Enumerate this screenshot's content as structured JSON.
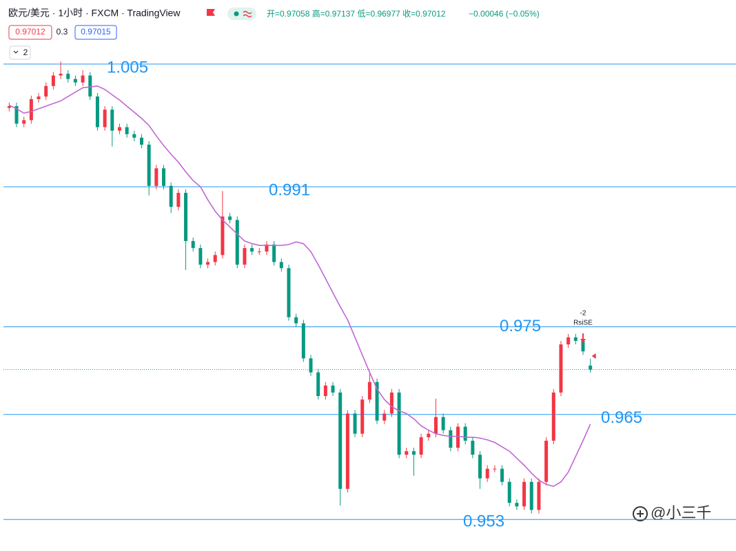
{
  "header": {
    "symbol": "欧元/美元 · 1小时 · FXCM · TradingView",
    "ohlc": "开=0.97058 高=0.97137 低=0.96977 收=0.97012",
    "change": "−0.00046 (−0.05%)",
    "sell": "0.97012",
    "spread": "0.3",
    "buy": "0.97015",
    "indicators": "2"
  },
  "chart_data": {
    "type": "candlestick",
    "open": [
      1.0,
      1.0002,
      0.9982,
      0.9986,
      1.001,
      1.0013,
      1.0025,
      1.0037,
      1.0039,
      1.0033,
      1.0029,
      1.0037,
      1.0013,
      0.9978,
      0.9998,
      0.9974,
      0.9978,
      0.997,
      0.9966,
      0.9958,
      0.9911,
      0.9931,
      0.9911,
      0.9887,
      0.9903,
      0.9848,
      0.984,
      0.9821,
      0.9824,
      0.9832,
      0.9876,
      0.9872,
      0.9821,
      0.984,
      0.9836,
      0.9836,
      0.9844,
      0.9824,
      0.9817,
      0.9761,
      0.9754,
      0.9714,
      0.9698,
      0.9671,
      0.9683,
      0.9675,
      0.9565,
      0.9651,
      0.9628,
      0.9667,
      0.9687,
      0.9643,
      0.9651,
      0.9675,
      0.9604,
      0.9608,
      0.9604,
      0.9624,
      0.9628,
      0.9647,
      0.9632,
      0.9612,
      0.9636,
      0.962,
      0.9604,
      0.9577,
      0.9588,
      0.9588,
      0.9573,
      0.9549,
      0.9545,
      0.9573,
      0.9541,
      0.9573,
      0.962,
      0.9675,
      0.973,
      0.9738,
      0.9734,
      0.97058
    ],
    "high": [
      1.0006,
      1.0006,
      0.999,
      1.0014,
      1.0017,
      1.0029,
      1.0041,
      1.0053,
      1.0043,
      1.0037,
      1.0043,
      1.0041,
      1.0017,
      1.0002,
      1.0002,
      0.9982,
      0.9982,
      0.9974,
      0.997,
      0.9962,
      0.9935,
      0.9935,
      0.9915,
      0.9907,
      0.9907,
      0.9852,
      0.9844,
      0.9828,
      0.9836,
      0.9905,
      0.988,
      0.9876,
      0.9844,
      0.9844,
      0.984,
      0.9848,
      0.9848,
      0.9828,
      0.9821,
      0.9765,
      0.9758,
      0.9718,
      0.9702,
      0.9687,
      0.9687,
      0.9679,
      0.9655,
      0.9655,
      0.9671,
      0.9698,
      0.9691,
      0.9655,
      0.9679,
      0.9679,
      0.9612,
      0.9612,
      0.9628,
      0.9632,
      0.9668,
      0.9651,
      0.9636,
      0.964,
      0.964,
      0.9624,
      0.9608,
      0.9592,
      0.9592,
      0.9592,
      0.9577,
      0.9553,
      0.9577,
      0.9577,
      0.9577,
      0.9624,
      0.9679,
      0.9734,
      0.9742,
      0.9742,
      0.9738,
      0.97137
    ],
    "low": [
      0.9996,
      0.9978,
      0.9978,
      0.9982,
      1.0006,
      1.0009,
      1.0021,
      1.0033,
      1.0029,
      1.0025,
      1.0025,
      1.0009,
      0.9974,
      0.9974,
      0.9956,
      0.997,
      0.9966,
      0.9962,
      0.9954,
      0.99,
      0.9907,
      0.9907,
      0.988,
      0.9883,
      0.9815,
      0.9836,
      0.9817,
      0.9817,
      0.982,
      0.9828,
      0.9868,
      0.9817,
      0.9817,
      0.9832,
      0.9832,
      0.9832,
      0.982,
      0.9813,
      0.9757,
      0.975,
      0.971,
      0.9694,
      0.9667,
      0.9667,
      0.9671,
      0.9546,
      0.9561,
      0.9624,
      0.9624,
      0.9663,
      0.9639,
      0.9639,
      0.9647,
      0.96,
      0.96,
      0.958,
      0.96,
      0.962,
      0.9624,
      0.9628,
      0.9608,
      0.9608,
      0.9616,
      0.96,
      0.9565,
      0.9573,
      0.9584,
      0.9569,
      0.9545,
      0.9541,
      0.9541,
      0.9537,
      0.9537,
      0.9569,
      0.9616,
      0.9671,
      0.9726,
      0.973,
      0.9718,
      0.96977
    ],
    "close": [
      1.0002,
      0.9982,
      0.9986,
      1.001,
      1.0013,
      1.0025,
      1.0037,
      1.0039,
      1.0033,
      1.0029,
      1.0037,
      1.0013,
      0.9978,
      0.9998,
      0.9974,
      0.9978,
      0.997,
      0.9966,
      0.9958,
      0.9911,
      0.9931,
      0.9911,
      0.9887,
      0.9903,
      0.9848,
      0.984,
      0.9821,
      0.9824,
      0.9832,
      0.9876,
      0.9872,
      0.9821,
      0.984,
      0.9836,
      0.9836,
      0.9844,
      0.9824,
      0.9817,
      0.9761,
      0.9754,
      0.9714,
      0.9698,
      0.9671,
      0.9683,
      0.9675,
      0.9565,
      0.9651,
      0.9628,
      0.9667,
      0.9687,
      0.9643,
      0.9651,
      0.9675,
      0.9604,
      0.9608,
      0.9604,
      0.9624,
      0.9628,
      0.9647,
      0.9632,
      0.9612,
      0.9636,
      0.962,
      0.9604,
      0.9577,
      0.9588,
      0.9588,
      0.9573,
      0.9549,
      0.9545,
      0.9573,
      0.9541,
      0.9573,
      0.962,
      0.9675,
      0.973,
      0.9738,
      0.9734,
      0.9722,
      0.97012
    ],
    "up_color": "#f23645",
    "down_color": "#089981",
    "series": [
      {
        "color": "#c165d4",
        "values": [
          1.0003,
          0.9999,
          0.9994,
          0.9996,
          0.9999,
          1.0002,
          1.0005,
          1.0008,
          1.0013,
          1.0018,
          1.0023,
          1.0024,
          1.0025,
          1.0021,
          1.0015,
          1.0009,
          1.0002,
          0.9995,
          0.9988,
          0.998,
          0.9968,
          0.9957,
          0.9947,
          0.9938,
          0.9927,
          0.9917,
          0.991,
          0.9895,
          0.9882,
          0.9872,
          0.9864,
          0.9856,
          0.9848,
          0.9845,
          0.9843,
          0.9843,
          0.9843,
          0.9843,
          0.9844,
          0.9847,
          0.9845,
          0.9836,
          0.9821,
          0.9805,
          0.9789,
          0.9773,
          0.9758,
          0.9738,
          0.9718,
          0.9698,
          0.9679,
          0.9667,
          0.9659,
          0.9654,
          0.9651,
          0.9645,
          0.9637,
          0.9632,
          0.9628,
          0.9626,
          0.9625,
          0.9625,
          0.9624,
          0.9624,
          0.9623,
          0.9621,
          0.9618,
          0.9613,
          0.9608,
          0.96,
          0.9592,
          0.9583,
          0.9575,
          0.957,
          0.9568,
          0.9573,
          0.9584,
          0.9602,
          0.962,
          0.9639
        ]
      }
    ],
    "ylim": [
      0.9498,
      1.0076
    ],
    "levels": [
      1.005,
      0.991,
      0.975,
      0.965,
      0.953
    ],
    "level_color": "#2196f3",
    "annotation": {
      "count": "-2",
      "label": "RsiSE"
    }
  },
  "watermark": "@小三千"
}
